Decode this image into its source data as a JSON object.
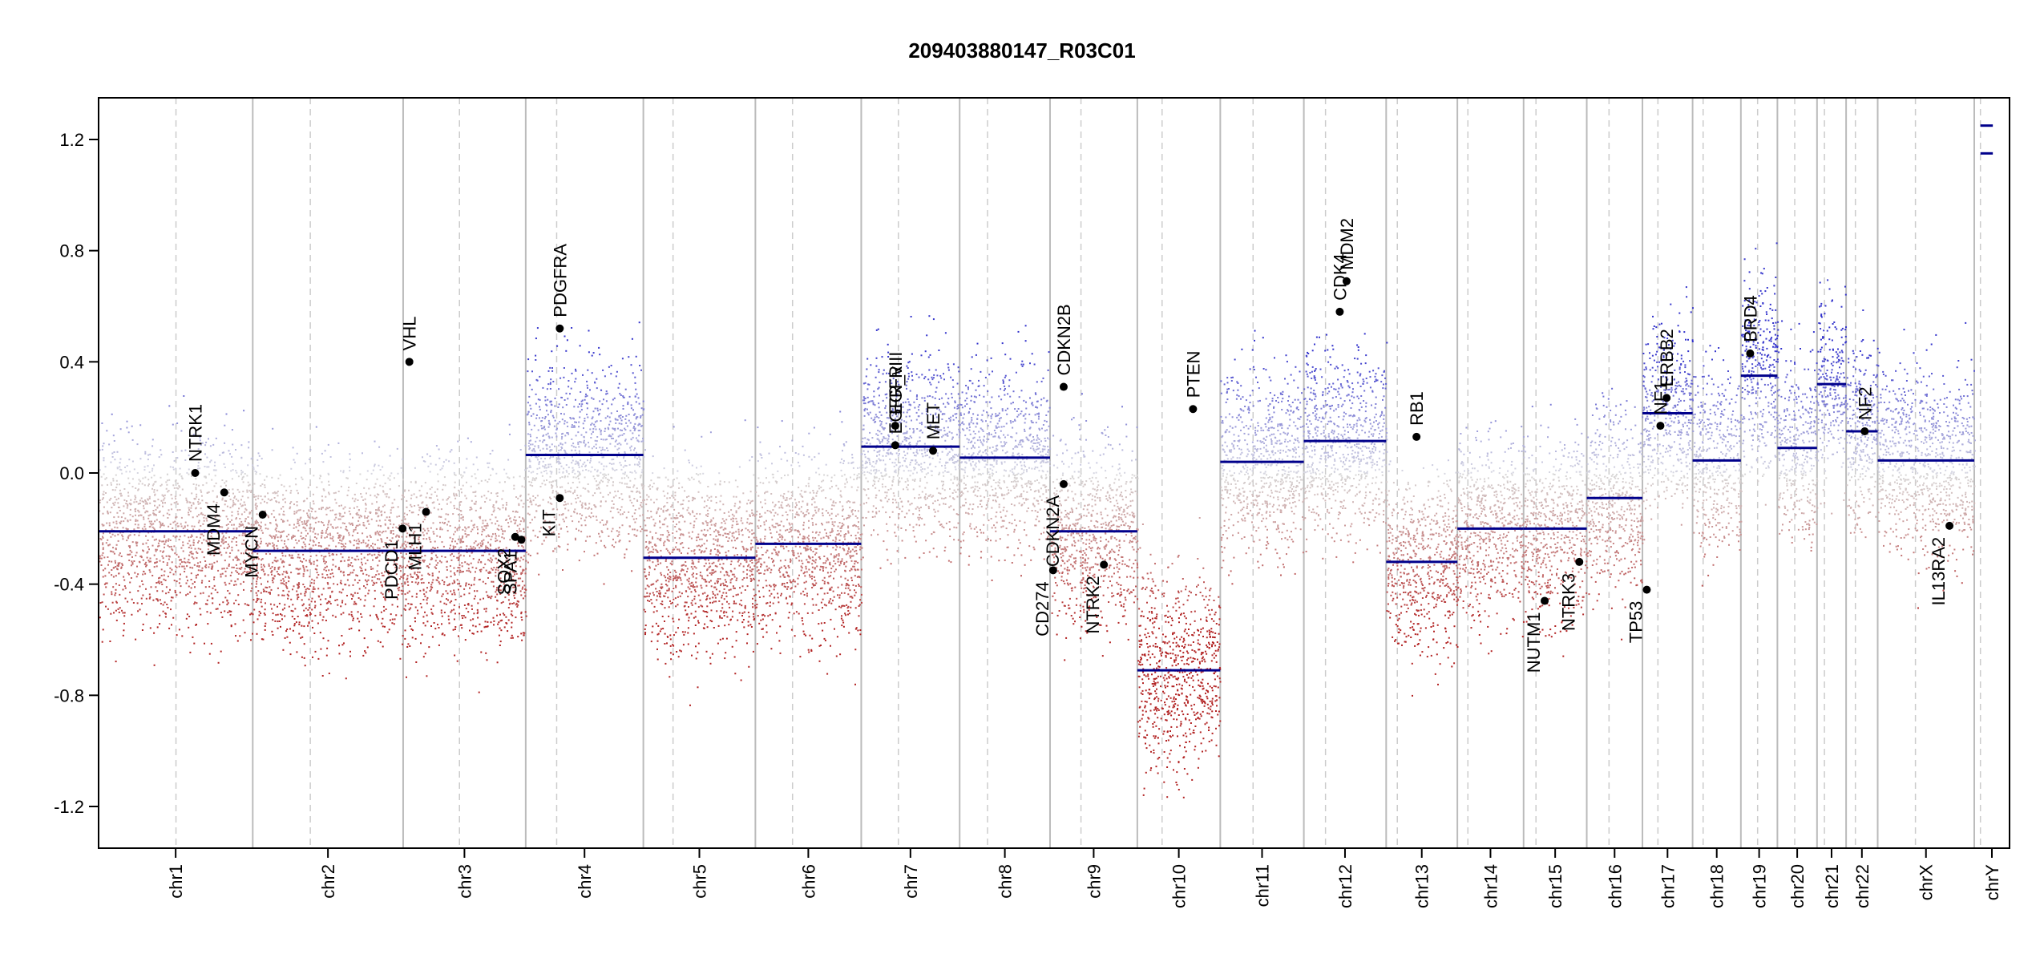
{
  "chart_data": {
    "type": "scatter",
    "title": "209403880147_R03C01",
    "xlabel": "",
    "ylabel": "",
    "ylim": [
      -1.35,
      1.35
    ],
    "yticks": [
      "-1.2",
      "-0.8",
      "-0.4",
      "0.0",
      "0.4",
      "0.8",
      "1.2"
    ],
    "ytick_values": [
      -1.2,
      -0.8,
      -0.4,
      0.0,
      0.4,
      0.8,
      1.2
    ],
    "colors": {
      "gain": "#3333cc",
      "loss": "#b22222",
      "segment": "#00008b",
      "frame": "#000000",
      "boundary": "#bbbbbb"
    },
    "chromosomes": [
      {
        "name": "chr1",
        "start": 0,
        "end": 249,
        "centromere": 125
      },
      {
        "name": "chr2",
        "start": 249,
        "end": 492,
        "centromere": 342
      },
      {
        "name": "chr3",
        "start": 492,
        "end": 690,
        "centromere": 583
      },
      {
        "name": "chr4",
        "start": 690,
        "end": 880,
        "centromere": 740
      },
      {
        "name": "chr5",
        "start": 880,
        "end": 1061,
        "centromere": 928
      },
      {
        "name": "chr6",
        "start": 1061,
        "end": 1232,
        "centromere": 1121
      },
      {
        "name": "chr7",
        "start": 1232,
        "end": 1391,
        "centromere": 1292
      },
      {
        "name": "chr8",
        "start": 1391,
        "end": 1537,
        "centromere": 1436
      },
      {
        "name": "chr9",
        "start": 1537,
        "end": 1678,
        "centromere": 1587
      },
      {
        "name": "chr10",
        "start": 1678,
        "end": 1812,
        "centromere": 1718
      },
      {
        "name": "chr11",
        "start": 1812,
        "end": 1947,
        "centromere": 1865
      },
      {
        "name": "chr12",
        "start": 1947,
        "end": 2080,
        "centromere": 1982
      },
      {
        "name": "chr13",
        "start": 2080,
        "end": 2195,
        "centromere": 2098
      },
      {
        "name": "chr14",
        "start": 2195,
        "end": 2302,
        "centromere": 2212
      },
      {
        "name": "chr15",
        "start": 2302,
        "end": 2404,
        "centromere": 2322
      },
      {
        "name": "chr16",
        "start": 2404,
        "end": 2494,
        "centromere": 2440
      },
      {
        "name": "chr17",
        "start": 2494,
        "end": 2575,
        "centromere": 2519
      },
      {
        "name": "chr18",
        "start": 2575,
        "end": 2653,
        "centromere": 2592
      },
      {
        "name": "chr19",
        "start": 2653,
        "end": 2712,
        "centromere": 2680
      },
      {
        "name": "chr20",
        "start": 2712,
        "end": 2776,
        "centromere": 2740
      },
      {
        "name": "chr21",
        "start": 2776,
        "end": 2823,
        "centromere": 2788
      },
      {
        "name": "chr22",
        "start": 2823,
        "end": 2874,
        "centromere": 2838
      },
      {
        "name": "chrX",
        "start": 2874,
        "end": 3030,
        "centromere": 2935
      },
      {
        "name": "chrY",
        "start": 3030,
        "end": 3087,
        "centromere": 3040
      }
    ],
    "segments": [
      {
        "chr": "chr1",
        "from": 0,
        "to": 249,
        "value": -0.21
      },
      {
        "chr": "chr2",
        "from": 249,
        "to": 492,
        "value": -0.28
      },
      {
        "chr": "chr3",
        "from": 492,
        "to": 690,
        "value": -0.28
      },
      {
        "chr": "chr4",
        "from": 690,
        "to": 880,
        "value": 0.065
      },
      {
        "chr": "chr5",
        "from": 880,
        "to": 1061,
        "value": -0.305
      },
      {
        "chr": "chr6",
        "from": 1061,
        "to": 1232,
        "value": -0.255
      },
      {
        "chr": "chr7",
        "from": 1232,
        "to": 1391,
        "value": 0.095
      },
      {
        "chr": "chr8",
        "from": 1391,
        "to": 1537,
        "value": 0.055
      },
      {
        "chr": "chr9",
        "from": 1537,
        "to": 1678,
        "value": -0.21
      },
      {
        "chr": "chr10",
        "from": 1678,
        "to": 1812,
        "value": -0.71
      },
      {
        "chr": "chr11",
        "from": 1812,
        "to": 1947,
        "value": 0.04
      },
      {
        "chr": "chr12",
        "from": 1947,
        "to": 2080,
        "value": 0.115
      },
      {
        "chr": "chr13",
        "from": 2080,
        "to": 2195,
        "value": -0.32
      },
      {
        "chr": "chr14",
        "from": 2195,
        "to": 2302,
        "value": -0.2
      },
      {
        "chr": "chr15",
        "from": 2302,
        "to": 2404,
        "value": -0.2
      },
      {
        "chr": "chr16",
        "from": 2404,
        "to": 2494,
        "value": -0.09
      },
      {
        "chr": "chr17",
        "from": 2494,
        "to": 2575,
        "value": 0.215
      },
      {
        "chr": "chr18",
        "from": 2575,
        "to": 2653,
        "value": 0.045
      },
      {
        "chr": "chr19",
        "from": 2653,
        "to": 2712,
        "value": 0.35
      },
      {
        "chr": "chr20",
        "from": 2712,
        "to": 2776,
        "value": 0.09
      },
      {
        "chr": "chr21",
        "from": 2776,
        "to": 2823,
        "value": 0.32
      },
      {
        "chr": "chr22",
        "from": 2823,
        "to": 2874,
        "value": 0.15
      },
      {
        "chr": "chrX",
        "from": 2874,
        "to": 3030,
        "value": 0.045
      },
      {
        "chr": "chrY",
        "from": 3040,
        "to": 3060,
        "value": 1.25
      },
      {
        "chr": "chrY",
        "from": 3040,
        "to": 3060,
        "value": 1.15
      }
    ],
    "genes": [
      {
        "name": "NTRK1",
        "pos": 156,
        "value": 0.0,
        "label_side": "above"
      },
      {
        "name": "MDM4",
        "pos": 203,
        "value": -0.07,
        "label_side": "below"
      },
      {
        "name": "MYCN",
        "pos": 265,
        "value": -0.15,
        "label_side": "below"
      },
      {
        "name": "PDCD1",
        "pos": 491,
        "value": -0.2,
        "label_side": "below"
      },
      {
        "name": "VHL",
        "pos": 502,
        "value": 0.4,
        "label_side": "above"
      },
      {
        "name": "MLH1",
        "pos": 529,
        "value": -0.14,
        "label_side": "below"
      },
      {
        "name": "SOX2",
        "pos": 673,
        "value": -0.23,
        "label_side": "below"
      },
      {
        "name": "SPA1",
        "pos": 683,
        "value": -0.24,
        "label_side": "below"
      },
      {
        "name": "PDGFRA",
        "pos": 745,
        "value": 0.52,
        "label_side": "above"
      },
      {
        "name": "KIT",
        "pos": 745,
        "value": -0.09,
        "label_side": "below"
      },
      {
        "name": "EGFR",
        "pos": 1287,
        "value": 0.17,
        "label_side": "above"
      },
      {
        "name": "EGFR_vIII",
        "pos": 1287,
        "value": 0.1,
        "label_side": "above"
      },
      {
        "name": "MET",
        "pos": 1348,
        "value": 0.08,
        "label_side": "above"
      },
      {
        "name": "CD274",
        "pos": 1542,
        "value": -0.35,
        "label_side": "below"
      },
      {
        "name": "CDKN2B",
        "pos": 1559,
        "value": 0.31,
        "label_side": "above"
      },
      {
        "name": "CDKN2A",
        "pos": 1559,
        "value": -0.04,
        "label_side": "below"
      },
      {
        "name": "NTRK2",
        "pos": 1624,
        "value": -0.33,
        "label_side": "below"
      },
      {
        "name": "PTEN",
        "pos": 1768,
        "value": 0.23,
        "label_side": "above"
      },
      {
        "name": "CDK4",
        "pos": 2005,
        "value": 0.58,
        "label_side": "above"
      },
      {
        "name": "MDM2",
        "pos": 2016,
        "value": 0.69,
        "label_side": "above"
      },
      {
        "name": "RB1",
        "pos": 2129,
        "value": 0.13,
        "label_side": "above"
      },
      {
        "name": "NUTM1",
        "pos": 2336,
        "value": -0.46,
        "label_side": "below"
      },
      {
        "name": "NTRK3",
        "pos": 2392,
        "value": -0.32,
        "label_side": "below"
      },
      {
        "name": "TP53",
        "pos": 2501,
        "value": -0.42,
        "label_side": "below"
      },
      {
        "name": "NF1",
        "pos": 2523,
        "value": 0.17,
        "label_side": "above"
      },
      {
        "name": "ERBB2",
        "pos": 2533,
        "value": 0.27,
        "label_side": "above"
      },
      {
        "name": "BRD4",
        "pos": 2668,
        "value": 0.43,
        "label_side": "above"
      },
      {
        "name": "NF2",
        "pos": 2853,
        "value": 0.15,
        "label_side": "above"
      },
      {
        "name": "IL13RA2",
        "pos": 2990,
        "value": -0.19,
        "label_side": "below"
      }
    ],
    "grid": false,
    "legend": "none"
  }
}
